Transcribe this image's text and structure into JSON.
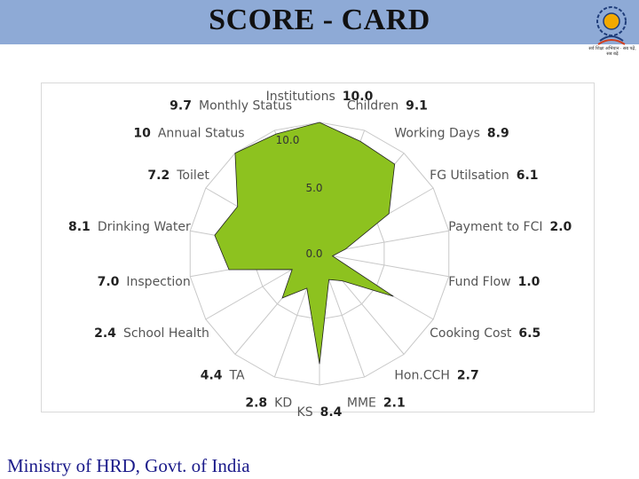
{
  "header": {
    "title": "SCORE - CARD",
    "logo": {
      "icon": "emblem-icon",
      "caption": "सर्व शिक्षा अभियान · सब पढ़ें, सब बढ़ें"
    }
  },
  "footer": {
    "text": "Ministry of HRD, Govt. of India"
  },
  "colors": {
    "title_bar": "#8eaad6",
    "fill": "#8dc21f",
    "stroke": "#222222",
    "grid": "#c8c8c8",
    "footer_text": "#1a1a8a"
  },
  "chart_data": {
    "type": "radar",
    "title": "",
    "grid": true,
    "legend": "none",
    "range": [
      0,
      10
    ],
    "ticks": [
      "0.0",
      "5.0",
      "10.0"
    ],
    "axes": [
      {
        "name": "Institutions",
        "value": 10.0,
        "label": "10.0"
      },
      {
        "name": "Children",
        "value": 9.1,
        "label": "9.1"
      },
      {
        "name": "Working Days",
        "value": 8.9,
        "label": "8.9"
      },
      {
        "name": "FG Utilsation",
        "value": 6.1,
        "label": "6.1"
      },
      {
        "name": "Payment to FCI",
        "value": 2.0,
        "label": "2.0"
      },
      {
        "name": "Fund Flow",
        "value": 1.0,
        "label": "1.0"
      },
      {
        "name": "Cooking Cost",
        "value": 6.5,
        "label": "6.5"
      },
      {
        "name": "Hon.CCH",
        "value": 2.7,
        "label": "2.7"
      },
      {
        "name": "MME",
        "value": 2.1,
        "label": "2.1"
      },
      {
        "name": "KS",
        "value": 8.4,
        "label": "8.4"
      },
      {
        "name": "KD",
        "value": 2.8,
        "label": "2.8"
      },
      {
        "name": "TA",
        "value": 4.4,
        "label": "4.4"
      },
      {
        "name": "School Health",
        "value": 2.4,
        "label": "2.4"
      },
      {
        "name": "Inspection",
        "value": 7.0,
        "label": "7.0"
      },
      {
        "name": "Drinking Water",
        "value": 8.1,
        "label": "8.1"
      },
      {
        "name": "Toilet",
        "value": 7.2,
        "label": "7.2"
      },
      {
        "name": "Annual Status",
        "value": 10,
        "label": "10"
      },
      {
        "name": "Monthly Status",
        "value": 9.7,
        "label": "9.7"
      }
    ]
  }
}
